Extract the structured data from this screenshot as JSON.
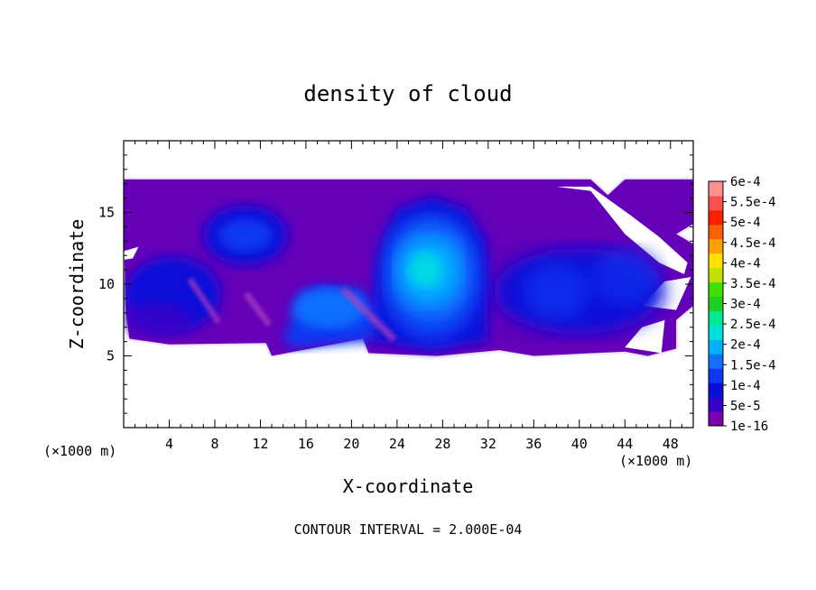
{
  "chart_data": {
    "type": "heatmap",
    "title": "density of cloud",
    "xlabel": "X-coordinate",
    "ylabel": "Z-coordinate",
    "x_unit_left": "(×1000 m)",
    "x_unit_right": "(×1000 m)",
    "xlim": [
      0,
      50
    ],
    "ylim": [
      0,
      20
    ],
    "x_ticks": [
      4,
      8,
      12,
      16,
      20,
      24,
      28,
      32,
      36,
      40,
      44,
      48
    ],
    "y_ticks": [
      5,
      10,
      15
    ],
    "footer": "CONTOUR INTERVAL = 2.000E-04",
    "colorbar": {
      "labels": [
        "1e-16",
        "5e-5",
        "1e-4",
        "1.5e-4",
        "2e-4",
        "2.5e-4",
        "3e-4",
        "3.5e-4",
        "4e-4",
        "4.5e-4",
        "5e-4",
        "5.5e-4",
        "6e-4"
      ],
      "colors": [
        "#7a00b0",
        "#3a00c8",
        "#0a10d8",
        "#1038f0",
        "#1070ff",
        "#00b0ff",
        "#00e0e0",
        "#00e890",
        "#20d020",
        "#40e000",
        "#c0e000",
        "#ffe000",
        "#ffa000",
        "#ff6000",
        "#ff2000",
        "#ff5050",
        "#ff9090"
      ]
    },
    "cloud_top_z": 17.3,
    "cloud_base_z": 5.0,
    "regions": [
      {
        "name": "main-cloud-deck",
        "level": 0
      },
      {
        "name": "upper-left-cell",
        "level": 2,
        "x": [
          7,
          14
        ],
        "z": [
          11.3,
          15.2
        ]
      },
      {
        "name": "left-cell",
        "level": 2,
        "x": [
          1,
          8
        ],
        "z": [
          7,
          11.5
        ]
      },
      {
        "name": "central-lower-cell",
        "level": 3,
        "x": [
          13,
          23
        ],
        "z": [
          5.5,
          10
        ]
      },
      {
        "name": "main-updraft-core",
        "level": 5,
        "x": [
          23,
          32
        ],
        "z": [
          6,
          15
        ]
      },
      {
        "name": "right-cell",
        "level": 2,
        "x": [
          33,
          47
        ],
        "z": [
          6.5,
          12
        ]
      }
    ]
  }
}
